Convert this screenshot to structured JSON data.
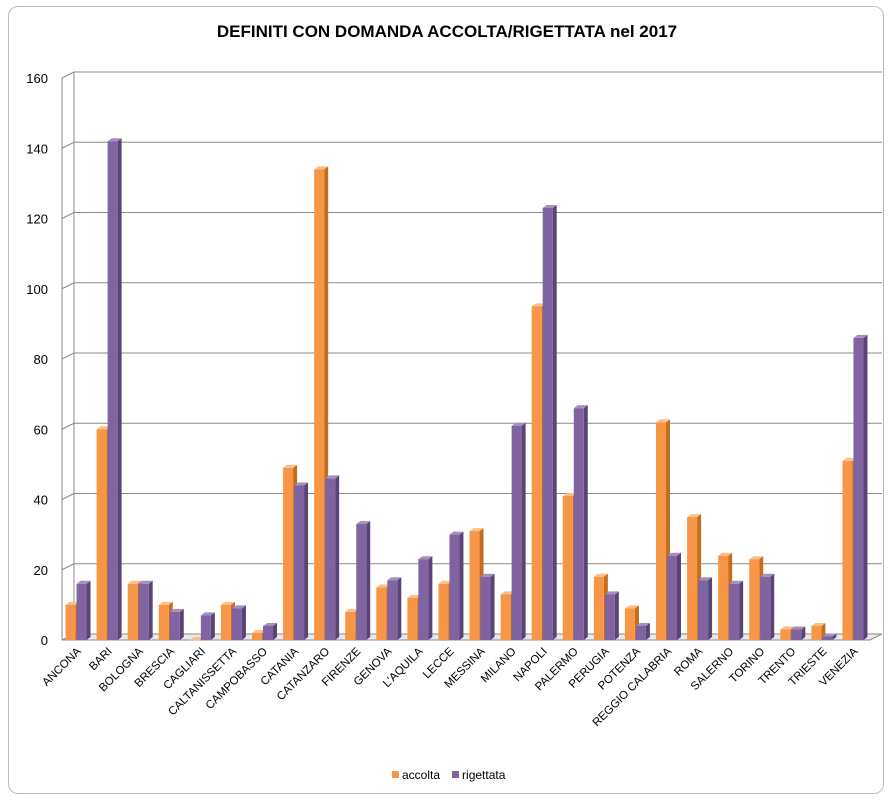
{
  "chart_data": {
    "type": "bar",
    "title": "DEFINITI CON DOMANDA ACCOLTA/RIGETTATA nel 2017",
    "xlabel": "",
    "ylabel": "",
    "ylim": [
      0,
      160
    ],
    "yticks": [
      0,
      20,
      40,
      60,
      80,
      100,
      120,
      140,
      160
    ],
    "grid": true,
    "legend_position": "bottom",
    "categories": [
      "ANCONA",
      "BARI",
      "BOLOGNA",
      "BRESCIA",
      "CAGLIARI",
      "CALTANISSETTA",
      "CAMPOBASSO",
      "CATANIA",
      "CATANZARO",
      "FIRENZE",
      "GENOVA",
      "L'AQUILA",
      "LECCE",
      "MESSINA",
      "MILANO",
      "NAPOLI",
      "PALERMO",
      "PERUGIA",
      "POTENZA",
      "REGGIO CALABRIA",
      "ROMA",
      "SALERNO",
      "TORINO",
      "TRENTO",
      "TRIESTE",
      "VENEZIA"
    ],
    "series": [
      {
        "name": "accolta",
        "color": "#f79646",
        "values": [
          10,
          60,
          16,
          10,
          0,
          10,
          2,
          49,
          134,
          8,
          15,
          12,
          16,
          31,
          13,
          95,
          41,
          18,
          9,
          62,
          35,
          24,
          23,
          3,
          4,
          51
        ]
      },
      {
        "name": "rigettata",
        "color": "#8064a2",
        "values": [
          16,
          142,
          16,
          8,
          7,
          9,
          4,
          44,
          46,
          33,
          17,
          23,
          30,
          18,
          61,
          123,
          66,
          13,
          4,
          24,
          17,
          16,
          18,
          3,
          1,
          86
        ]
      }
    ]
  }
}
